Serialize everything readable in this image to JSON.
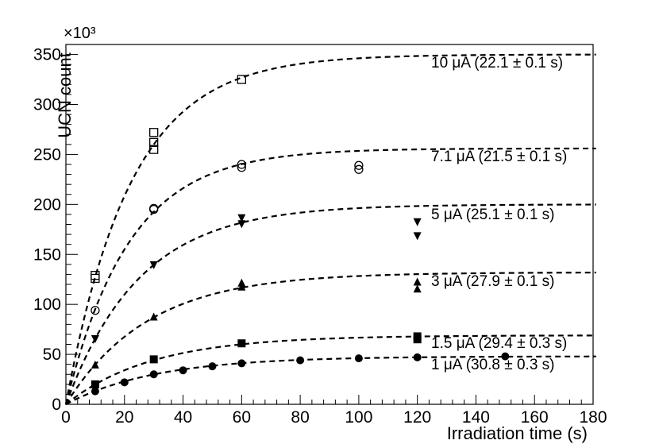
{
  "chart_data": {
    "type": "scatter",
    "xlabel": "Irradiation time (s)",
    "ylabel": "UCN count",
    "y_multiplier_label": "×10³",
    "xlim": [
      0,
      180
    ],
    "ylim": [
      0,
      360000
    ],
    "x_ticks": [
      0,
      20,
      40,
      60,
      80,
      100,
      120,
      140,
      160,
      180
    ],
    "y_ticks": [
      0,
      50000,
      100000,
      150000,
      200000,
      250000,
      300000,
      350000
    ],
    "x_tick_labels": [
      "0",
      "20",
      "40",
      "60",
      "80",
      "100",
      "120",
      "140",
      "160",
      "180"
    ],
    "y_tick_labels": [
      "0",
      "50",
      "100",
      "150",
      "200",
      "250",
      "300",
      "350"
    ],
    "grid": false,
    "series": [
      {
        "name": "10 μA (22.1 ± 0.1 s)",
        "marker": "open-square",
        "saturation": 350000,
        "tau": 22.1,
        "points": [
          [
            10,
            126000
          ],
          [
            10,
            129000
          ],
          [
            30,
            255000
          ],
          [
            30,
            262000
          ],
          [
            30,
            272000
          ],
          [
            60,
            325000
          ]
        ]
      },
      {
        "name": "7.1 μA (21.5 ± 0.1 s)",
        "marker": "open-circle",
        "saturation": 256000,
        "tau": 21.5,
        "points": [
          [
            10,
            94000
          ],
          [
            30,
            195000
          ],
          [
            30,
            196000
          ],
          [
            60,
            237000
          ],
          [
            60,
            240000
          ],
          [
            100,
            235000
          ],
          [
            100,
            239000
          ]
        ]
      },
      {
        "name": "5 μA (25.1 ± 0.1 s)",
        "marker": "filled-triangle-down",
        "saturation": 200000,
        "tau": 25.1,
        "points": [
          [
            10,
            66000
          ],
          [
            30,
            140000
          ],
          [
            60,
            181000
          ],
          [
            60,
            187000
          ],
          [
            120,
            169000
          ],
          [
            120,
            183000
          ]
        ]
      },
      {
        "name": "3 μA (27.9 ± 0.1 s)",
        "marker": "filled-triangle-up",
        "saturation": 132000,
        "tau": 27.9,
        "points": [
          [
            10,
            39000
          ],
          [
            30,
            87000
          ],
          [
            60,
            117000
          ],
          [
            60,
            121000
          ],
          [
            120,
            115000
          ],
          [
            120,
            122000
          ]
        ]
      },
      {
        "name": "1.5 μA (29.4 ± 0.3 s)",
        "marker": "filled-square",
        "saturation": 69000,
        "tau": 29.4,
        "points": [
          [
            10,
            20000
          ],
          [
            30,
            45000
          ],
          [
            60,
            61000
          ],
          [
            120,
            65000
          ],
          [
            120,
            68000
          ]
        ]
      },
      {
        "name": "1 μA (30.8 ± 0.3 s)",
        "marker": "filled-circle",
        "saturation": 48000,
        "tau": 30.8,
        "points": [
          [
            10,
            13000
          ],
          [
            20,
            22000
          ],
          [
            30,
            30000
          ],
          [
            40,
            34000
          ],
          [
            50,
            38000
          ],
          [
            60,
            41000
          ],
          [
            80,
            44000
          ],
          [
            100,
            46000
          ],
          [
            120,
            47000
          ],
          [
            150,
            48000
          ]
        ]
      }
    ],
    "legend": "inline labels at right end of each curve"
  }
}
